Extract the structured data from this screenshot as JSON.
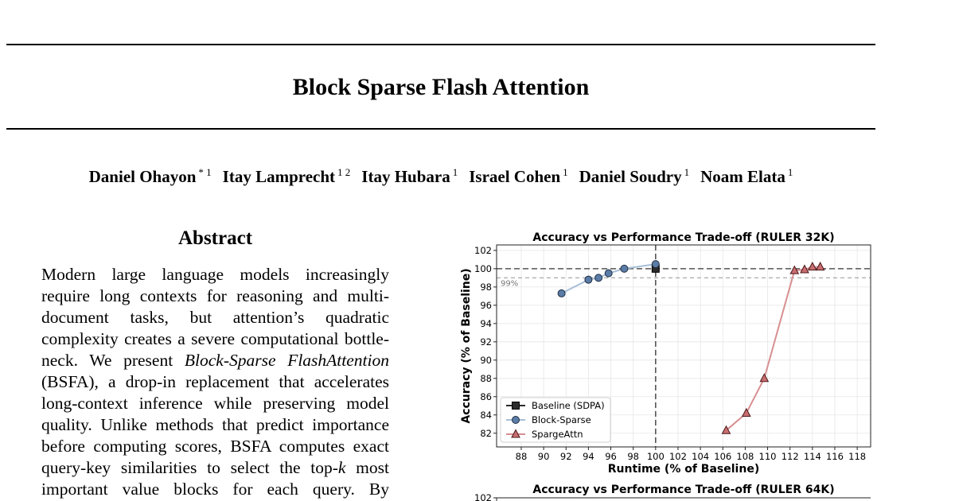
{
  "paper": {
    "title": "Block Sparse Flash Attention",
    "authors": [
      {
        "name": "Daniel Ohayon",
        "affil": "* 1"
      },
      {
        "name": "Itay Lamprecht",
        "affil": "1 2"
      },
      {
        "name": "Itay Hubara",
        "affil": "1"
      },
      {
        "name": "Israel Cohen",
        "affil": "1"
      },
      {
        "name": "Daniel Soudry",
        "affil": "1"
      },
      {
        "name": "Noam Elata",
        "affil": "1"
      }
    ],
    "abstract_heading": "Abstract",
    "abstract_lines": [
      {
        "pre": "Modern large language models increasingly"
      },
      {
        "pre": "require long contexts for reasoning and multi-"
      },
      {
        "pre": "document tasks, but attention’s quadratic"
      },
      {
        "pre": "complexity creates a severe computational bottle-"
      },
      {
        "pre": "neck. We present ",
        "em": "Block-Sparse FlashAttention",
        "post": ""
      },
      {
        "pre": "(BSFA), a drop-in replacement that accelerates"
      },
      {
        "pre": "long-context inference while preserving model"
      },
      {
        "pre": "quality. Unlike methods that predict importance"
      },
      {
        "pre": "before computing scores, BSFA computes exact"
      },
      {
        "pre": "query-key similarities to select the top-",
        "em": "k",
        "post": " most"
      },
      {
        "pre": "important value blocks for each query. By"
      }
    ]
  },
  "chart_data": [
    {
      "type": "line",
      "title": "Accuracy vs Performance Trade-off (RULER 32K)",
      "xlabel": "Runtime (% of Baseline)",
      "ylabel": "Accuracy (% of Baseline)",
      "xlim": [
        85.8,
        119.2
      ],
      "ylim": [
        80.5,
        102.6
      ],
      "xticks": [
        88,
        90,
        92,
        94,
        96,
        98,
        100,
        102,
        104,
        106,
        108,
        110,
        112,
        114,
        116,
        118
      ],
      "yticks": [
        82,
        84,
        86,
        88,
        90,
        92,
        94,
        96,
        98,
        100,
        102
      ],
      "grid": true,
      "legend": "bottom-left",
      "reference_lines": {
        "y_100": 100,
        "y_99": 99,
        "x_100": 100,
        "y_99_label": "99%"
      },
      "series": [
        {
          "name": "Baseline (SDPA)",
          "marker": "square",
          "color": "#2b2b2b",
          "edge": "#000000",
          "points": [
            [
              100,
              100
            ]
          ]
        },
        {
          "name": "Block-Sparse",
          "marker": "circle",
          "color": "#5b7ca6",
          "edge": "#1f2f44",
          "line": "#a8bfd8",
          "points": [
            [
              91.6,
              97.3
            ],
            [
              94,
              98.8
            ],
            [
              94.9,
              99.0
            ],
            [
              95.8,
              99.5
            ],
            [
              97.2,
              100.0
            ],
            [
              100,
              100.5
            ]
          ]
        },
        {
          "name": "SpargeAttn",
          "marker": "triangle",
          "color": "#c96f71",
          "edge": "#4a1616",
          "line": "#d88f91",
          "points": [
            [
              106.3,
              82.3
            ],
            [
              108.1,
              84.2
            ],
            [
              109.7,
              88.0
            ],
            [
              112.4,
              99.8
            ],
            [
              113.3,
              99.9
            ],
            [
              114,
              100.2
            ],
            [
              114.7,
              100.2
            ]
          ]
        }
      ]
    },
    {
      "type": "line",
      "title": "Accuracy vs Performance Trade-off (RULER 64K)",
      "yticks": [
        102
      ],
      "ylim": [
        80.5,
        102.6
      ],
      "series": []
    }
  ]
}
